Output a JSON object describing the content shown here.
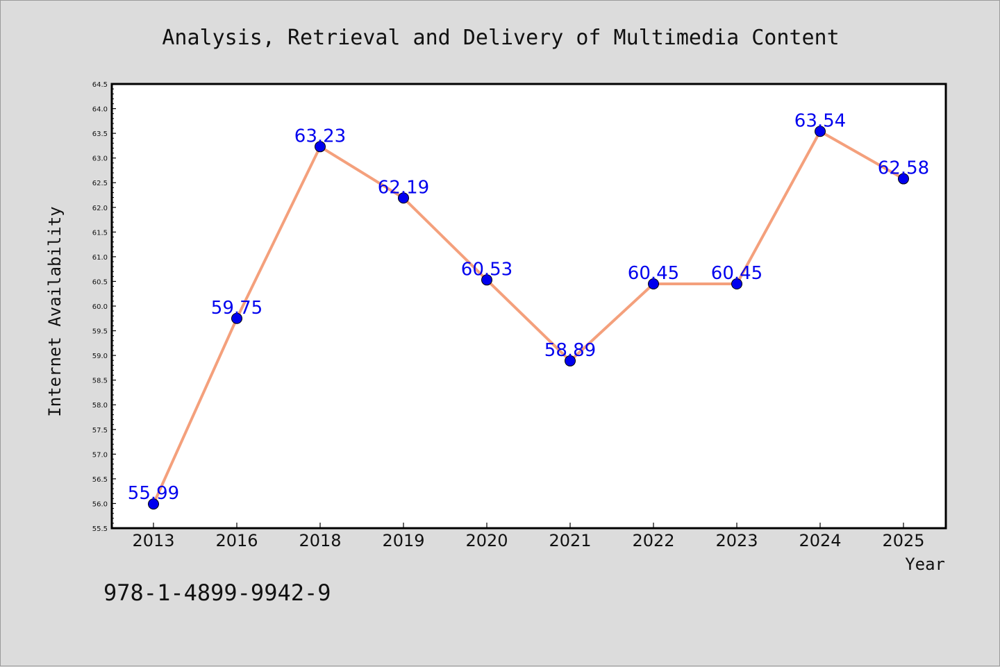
{
  "chart_data": {
    "type": "line",
    "title": "Analysis, Retrieval and Delivery of Multimedia Content",
    "xlabel": "Year",
    "ylabel": "Internet Availability",
    "categories": [
      "2013",
      "2016",
      "2018",
      "2019",
      "2020",
      "2021",
      "2022",
      "2023",
      "2024",
      "2025"
    ],
    "series": [
      {
        "values": [
          55.99,
          59.75,
          63.23,
          62.19,
          60.53,
          58.89,
          60.45,
          60.45,
          63.54,
          62.58
        ],
        "labels": [
          "55.99",
          "59.75",
          "63.23",
          "62.19",
          "60.53",
          "58.89",
          "60.45",
          "60.45",
          "63.54",
          "62.58"
        ],
        "line_color": "#f4a07c",
        "marker_color": "#0000ee"
      }
    ],
    "ylim": [
      55.5,
      64.5
    ],
    "yticks": [
      "55.5",
      "56.0",
      "56.5",
      "57.0",
      "57.5",
      "58.0",
      "58.5",
      "59.0",
      "59.5",
      "60.0",
      "60.5",
      "61.0",
      "61.5",
      "62.0",
      "62.5",
      "63.0",
      "63.5",
      "64.0",
      "64.5"
    ],
    "grid": false,
    "legend": "none"
  },
  "footer": {
    "isbn": "978-1-4899-9942-9"
  },
  "colors": {
    "background": "#dcdcdc",
    "plot_background": "#ffffff",
    "line": "#f4a07c",
    "marker": "#0000ee",
    "label": "#0000ee"
  }
}
